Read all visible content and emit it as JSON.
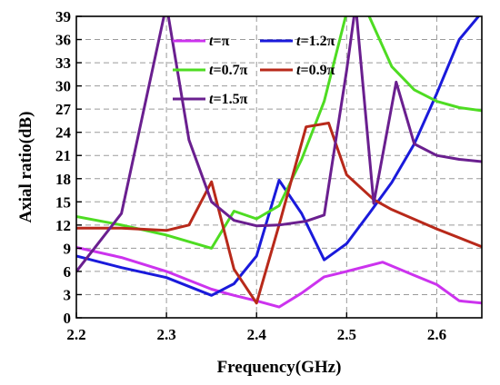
{
  "chart_data": {
    "type": "line",
    "xlabel": "Frequency(GHz)",
    "ylabel": "Axial ratio(dB)",
    "xlim": [
      2.2,
      2.65
    ],
    "ylim": [
      0,
      39
    ],
    "xticks": [
      "2.2",
      "2.3",
      "2.4",
      "2.5",
      "2.6"
    ],
    "yticks": [
      "0",
      "3",
      "6",
      "9",
      "12",
      "15",
      "18",
      "21",
      "24",
      "27",
      "30",
      "33",
      "36",
      "39"
    ],
    "grid": true,
    "legend_position": "top",
    "series": [
      {
        "name": "π",
        "color": "#cc33ee",
        "x": [
          2.2,
          2.25,
          2.3,
          2.35,
          2.375,
          2.4,
          2.425,
          2.45,
          2.475,
          2.5,
          2.54,
          2.575,
          2.6,
          2.625,
          2.65
        ],
        "y": [
          9.1,
          7.8,
          6.0,
          3.7,
          2.9,
          2.2,
          1.4,
          3.2,
          5.3,
          6.0,
          7.2,
          5.5,
          4.3,
          2.2,
          1.9
        ]
      },
      {
        "name": "1.2π",
        "color": "#1a1adb",
        "x": [
          2.2,
          2.25,
          2.3,
          2.35,
          2.375,
          2.4,
          2.425,
          2.45,
          2.475,
          2.5,
          2.525,
          2.55,
          2.575,
          2.6,
          2.625,
          2.65
        ],
        "y": [
          8.0,
          6.5,
          5.2,
          2.9,
          4.4,
          8.0,
          17.8,
          13.5,
          7.5,
          9.6,
          13.5,
          17.5,
          22.5,
          29.0,
          36.0,
          39.5
        ]
      },
      {
        "name": "0.7π",
        "color": "#4edc22",
        "x": [
          2.2,
          2.25,
          2.3,
          2.35,
          2.375,
          2.4,
          2.425,
          2.45,
          2.475,
          2.5,
          2.51,
          2.525,
          2.55,
          2.575,
          2.6,
          2.625,
          2.65
        ],
        "y": [
          13.1,
          12.0,
          10.7,
          9.0,
          13.8,
          12.8,
          14.5,
          20.5,
          28.0,
          39.5,
          41.0,
          39.0,
          32.5,
          29.5,
          28.0,
          27.2,
          26.8
        ]
      },
      {
        "name": "0.9π",
        "color": "#b8291a",
        "x": [
          2.2,
          2.25,
          2.3,
          2.325,
          2.35,
          2.375,
          2.4,
          2.425,
          2.455,
          2.48,
          2.5,
          2.53,
          2.55,
          2.6,
          2.65
        ],
        "y": [
          11.6,
          11.6,
          11.3,
          12.0,
          17.6,
          6.3,
          1.9,
          12.0,
          24.7,
          25.2,
          18.5,
          15.3,
          14.0,
          11.5,
          9.2
        ]
      },
      {
        "name": "1.5π",
        "color": "#6a1f8f",
        "x": [
          2.2,
          2.21,
          2.25,
          2.3,
          2.325,
          2.35,
          2.375,
          2.4,
          2.425,
          2.455,
          2.475,
          2.5,
          2.51,
          2.53,
          2.555,
          2.575,
          2.6,
          2.625,
          2.65
        ],
        "y": [
          6.0,
          7.5,
          13.5,
          40.5,
          23.0,
          15.0,
          12.6,
          11.9,
          12.0,
          12.5,
          13.3,
          32.0,
          40.5,
          14.8,
          30.5,
          22.5,
          21.0,
          20.5,
          20.2
        ]
      }
    ]
  }
}
